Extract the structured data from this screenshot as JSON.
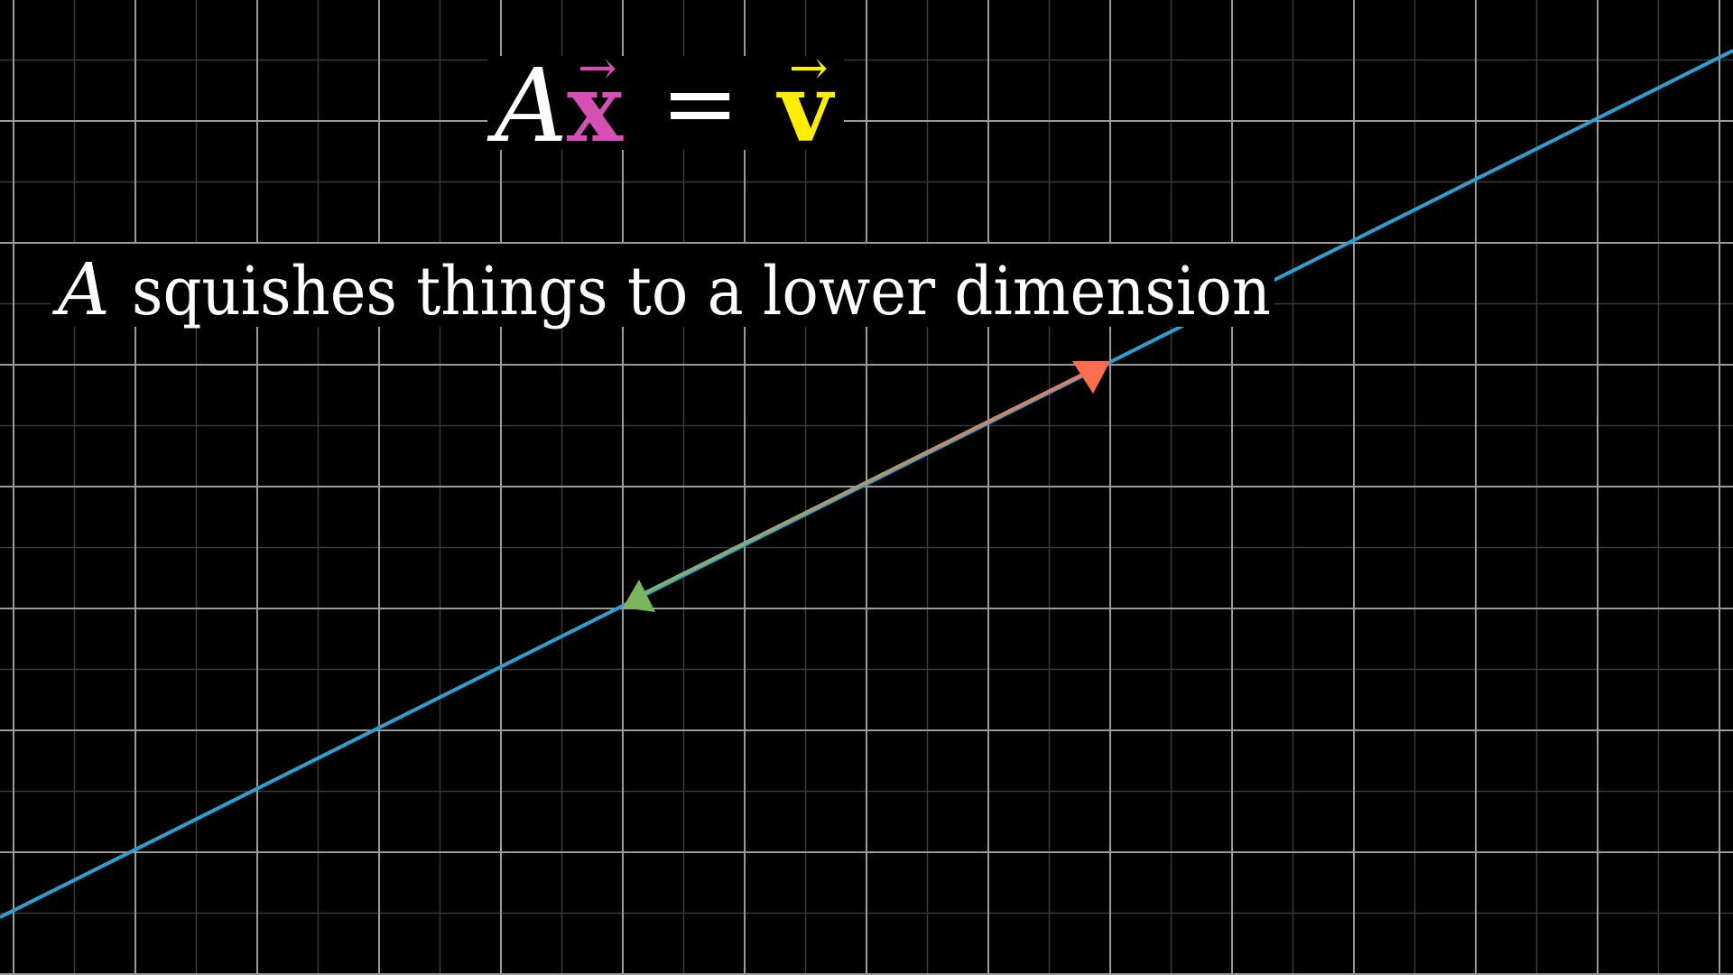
{
  "equation": {
    "matrix": "A",
    "input_vector": "x",
    "equals": "=",
    "output_vector": "v",
    "vector_arrow": "→"
  },
  "caption": {
    "variable": "A",
    "text": "squishes things to a lower dimension"
  },
  "colors": {
    "background": "#000000",
    "grid_major": "#9a9a9a",
    "grid_minor": "#3a3a3a",
    "span_line": "#2e9fd0",
    "text": "#ffffff",
    "input_vector": "#d64fb2",
    "output_vector": "#ffee00",
    "arrow_red": "#ff6e50",
    "arrow_green": "#7ab65e",
    "arrow_shaft_red": "#e07c6c",
    "arrow_shaft_green": "#6cbb7a"
  }
}
